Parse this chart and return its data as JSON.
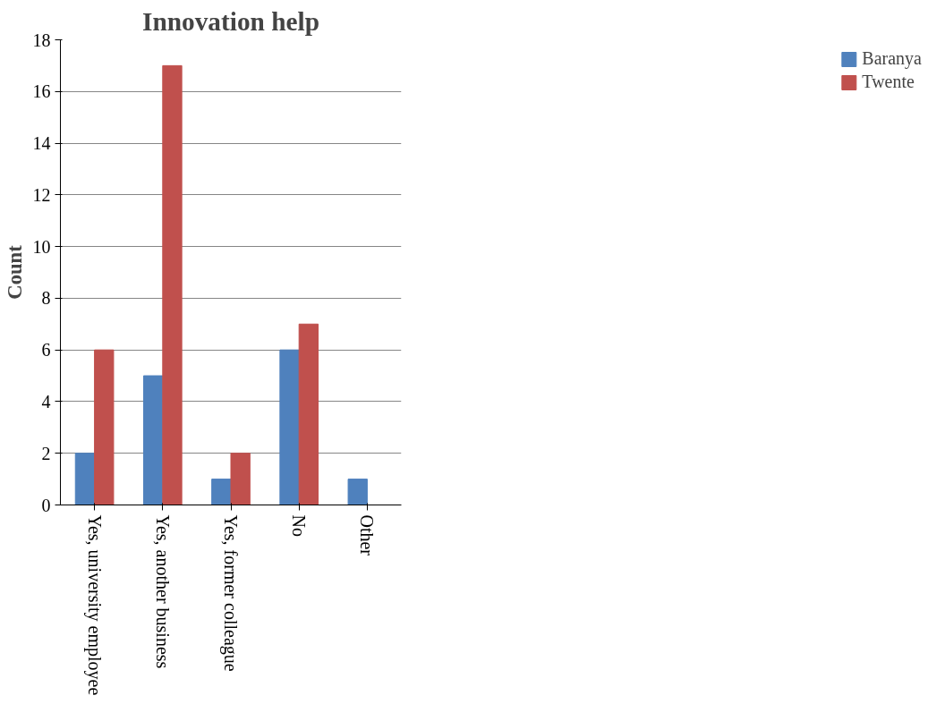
{
  "chart_data": {
    "type": "bar",
    "title": "Innovation help",
    "ylabel": "Count",
    "categories": [
      "Yes, university employee",
      "Yes, another business",
      "Yes, former colleague",
      "No",
      "Other"
    ],
    "series": [
      {
        "name": "Baranya",
        "color": "#4f81bd",
        "values": [
          2,
          5,
          1,
          6,
          1
        ]
      },
      {
        "name": "Twente",
        "color": "#c0504d",
        "values": [
          6,
          17,
          2,
          7,
          0
        ]
      }
    ],
    "ylim": [
      0,
      18
    ],
    "yticks": [
      0,
      2,
      4,
      6,
      8,
      10,
      12,
      14,
      16,
      18
    ],
    "grid": "y",
    "legend": "right"
  }
}
